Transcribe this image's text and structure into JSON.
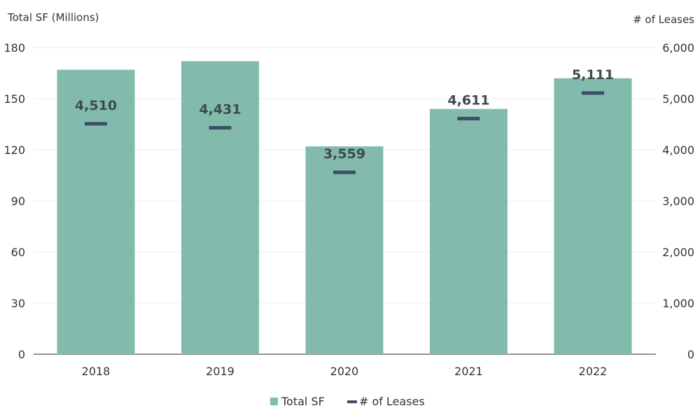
{
  "chart_data": {
    "type": "bar",
    "categories": [
      "2018",
      "2019",
      "2020",
      "2021",
      "2022"
    ],
    "series": [
      {
        "name": "Total SF",
        "type": "bar",
        "axis": "left",
        "values": [
          167,
          172,
          122,
          144,
          162
        ]
      },
      {
        "name": "# of Leases",
        "type": "marker",
        "axis": "right",
        "values": [
          4510,
          4431,
          3559,
          4611,
          5111
        ]
      }
    ],
    "data_labels": [
      "4,510",
      "4,431",
      "3,559",
      "4,611",
      "5,111"
    ],
    "ylabel": "Total SF (Millions)",
    "y2label": "# of Leases",
    "ylim": [
      0,
      180
    ],
    "y2lim": [
      0,
      6000
    ],
    "yticks": [
      "0",
      "30",
      "60",
      "90",
      "120",
      "150",
      "180"
    ],
    "y2ticks": [
      "0",
      "1,000",
      "2,000",
      "3,000",
      "4,000",
      "5,000",
      "6,000"
    ],
    "grid": true,
    "legend_position": "bottom-center",
    "colors": {
      "bar": "#82bbac",
      "marker": "#3f4d66",
      "grid": "#ececec",
      "axis": "#555555"
    }
  }
}
